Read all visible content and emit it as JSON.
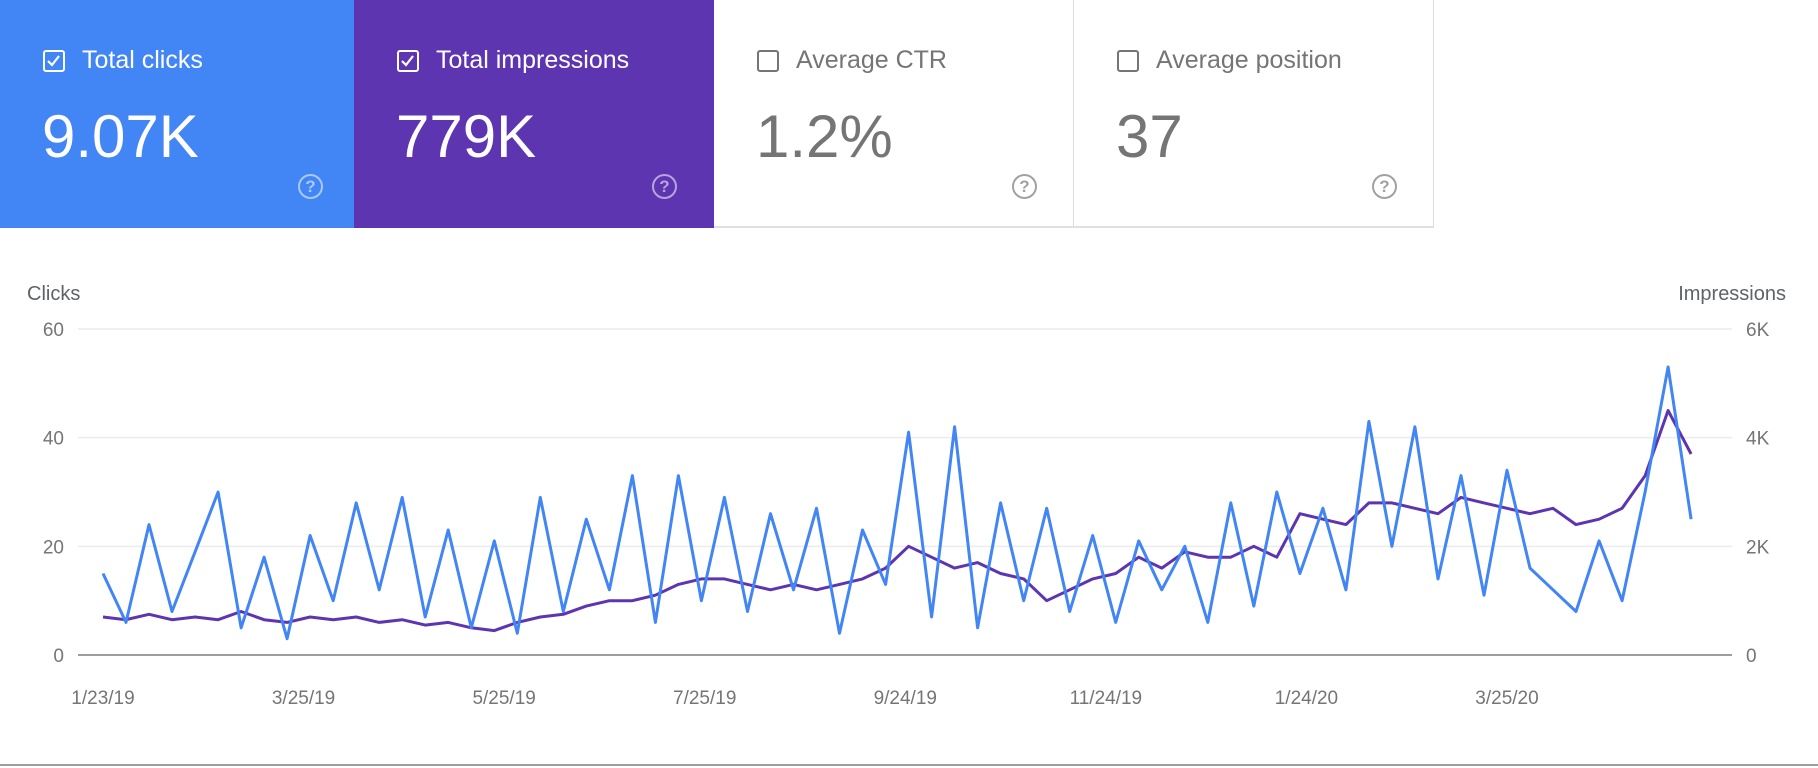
{
  "cards": [
    {
      "label": "Total clicks",
      "value": "9.07K",
      "checked": true,
      "color": "#4285f4"
    },
    {
      "label": "Total impressions",
      "value": "779K",
      "checked": true,
      "color": "#5e35b1"
    },
    {
      "label": "Average CTR",
      "value": "1.2%",
      "checked": false
    },
    {
      "label": "Average position",
      "value": "37",
      "checked": false
    }
  ],
  "help_icon": "question-circle-icon",
  "chart_data": {
    "type": "line",
    "ylabel_left": "Clicks",
    "ylabel_right": "Impressions",
    "y_left_ticks": [
      "0",
      "20",
      "40",
      "60"
    ],
    "y_left_range": [
      0,
      60
    ],
    "y_right_ticks": [
      "0",
      "2K",
      "4K",
      "6K"
    ],
    "y_right_range": [
      0,
      6000
    ],
    "x_tick_labels": [
      "1/23/19",
      "3/25/19",
      "5/25/19",
      "7/25/19",
      "9/24/19",
      "11/24/19",
      "1/24/20",
      "3/25/20"
    ],
    "x_tick_dates": [
      "2019-01-23",
      "2019-03-25",
      "2019-05-25",
      "2019-07-25",
      "2019-09-24",
      "2019-11-24",
      "2020-01-24",
      "2020-03-25"
    ],
    "grid": true,
    "x": [
      "2019-01-23",
      "2019-01-30",
      "2019-02-06",
      "2019-02-13",
      "2019-02-20",
      "2019-02-27",
      "2019-03-06",
      "2019-03-13",
      "2019-03-20",
      "2019-03-27",
      "2019-04-03",
      "2019-04-10",
      "2019-04-17",
      "2019-04-24",
      "2019-05-01",
      "2019-05-08",
      "2019-05-15",
      "2019-05-22",
      "2019-05-29",
      "2019-06-05",
      "2019-06-12",
      "2019-06-19",
      "2019-06-26",
      "2019-07-03",
      "2019-07-10",
      "2019-07-17",
      "2019-07-24",
      "2019-07-31",
      "2019-08-07",
      "2019-08-14",
      "2019-08-21",
      "2019-08-28",
      "2019-09-04",
      "2019-09-11",
      "2019-09-18",
      "2019-09-25",
      "2019-10-02",
      "2019-10-09",
      "2019-10-16",
      "2019-10-23",
      "2019-10-30",
      "2019-11-06",
      "2019-11-13",
      "2019-11-20",
      "2019-11-27",
      "2019-12-04",
      "2019-12-11",
      "2019-12-18",
      "2019-12-25",
      "2020-01-01",
      "2020-01-08",
      "2020-01-15",
      "2020-01-22",
      "2020-01-29",
      "2020-02-05",
      "2020-02-12",
      "2020-02-19",
      "2020-02-26",
      "2020-03-04",
      "2020-03-11",
      "2020-03-18",
      "2020-03-25",
      "2020-04-01",
      "2020-04-08",
      "2020-04-15",
      "2020-04-22",
      "2020-04-29",
      "2020-05-06",
      "2020-05-13",
      "2020-05-20"
    ],
    "series": [
      {
        "name": "Clicks",
        "axis": "left",
        "color": "#4285f4",
        "values": [
          15,
          6,
          24,
          8,
          19,
          30,
          5,
          18,
          3,
          22,
          10,
          28,
          12,
          29,
          7,
          23,
          5,
          21,
          4,
          29,
          8,
          25,
          12,
          33,
          6,
          33,
          10,
          29,
          8,
          26,
          12,
          27,
          4,
          23,
          13,
          41,
          7,
          42,
          5,
          28,
          10,
          27,
          8,
          22,
          6,
          21,
          12,
          20,
          6,
          28,
          9,
          30,
          15,
          27,
          12,
          43,
          20,
          42,
          14,
          33,
          11,
          34,
          16,
          12,
          8,
          21,
          10,
          30,
          53,
          25
        ]
      },
      {
        "name": "Impressions",
        "axis": "right",
        "color": "#5e35b1",
        "values": [
          700,
          650,
          750,
          650,
          700,
          650,
          800,
          650,
          600,
          700,
          650,
          700,
          600,
          650,
          550,
          600,
          500,
          450,
          600,
          700,
          750,
          900,
          1000,
          1000,
          1100,
          1300,
          1400,
          1400,
          1300,
          1200,
          1300,
          1200,
          1300,
          1400,
          1600,
          2000,
          1800,
          1600,
          1700,
          1500,
          1400,
          1000,
          1200,
          1400,
          1500,
          1800,
          1600,
          1900,
          1800,
          1800,
          2000,
          1800,
          2600,
          2500,
          2400,
          2800,
          2800,
          2700,
          2600,
          2900,
          2800,
          2700,
          2600,
          2700,
          2400,
          2500,
          2700,
          3300,
          4500,
          3700
        ]
      }
    ]
  }
}
